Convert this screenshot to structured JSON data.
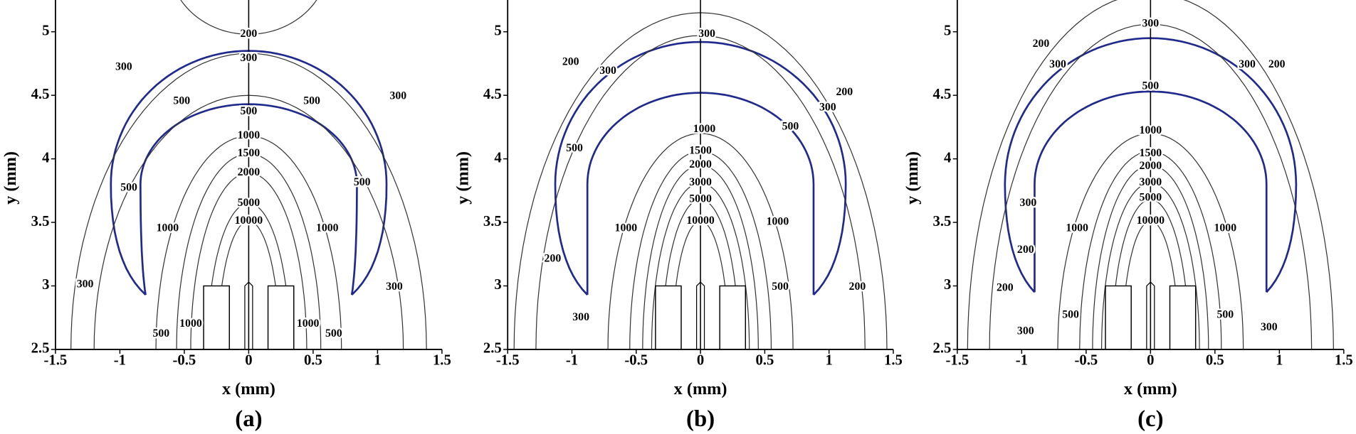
{
  "chart_data": [
    {
      "type": "contour",
      "title": "(a)",
      "x_label": "x (mm)",
      "y_label": "y (mm)",
      "xlim": [
        -1.5,
        1.5
      ],
      "ylim": [
        2.5,
        5.25
      ],
      "xticks": [
        -1.5,
        -1,
        -0.5,
        0,
        0.5,
        1,
        1.5
      ],
      "yticks": [
        2.5,
        3,
        3.5,
        4,
        4.5,
        5
      ],
      "color": "#333333",
      "highlight_color": "#1f2a8c",
      "contour_labels": [
        200,
        300,
        300,
        300,
        500,
        500,
        500,
        1000,
        1500,
        2000,
        5000,
        10000,
        500,
        500,
        1000,
        1000,
        300,
        300,
        500,
        1000,
        1000,
        500
      ]
    },
    {
      "type": "contour",
      "title": "(b)",
      "x_label": "x (mm)",
      "y_label": "y (mm)",
      "xlim": [
        -1.5,
        1.5
      ],
      "ylim": [
        2.5,
        5.25
      ],
      "xticks": [
        -1.5,
        -1,
        -0.5,
        0,
        0.5,
        1,
        1.5
      ],
      "yticks": [
        2.5,
        3,
        3.5,
        4,
        4.5,
        5
      ],
      "color": "#333333",
      "highlight_color": "#1f2a8c",
      "contour_labels": [
        300,
        200,
        300,
        200,
        300,
        500,
        1000,
        1500,
        2000,
        3000,
        5000,
        10000,
        500,
        1000,
        1000,
        200,
        300,
        500,
        200
      ]
    },
    {
      "type": "contour",
      "title": "(c)",
      "x_label": "x (mm)",
      "y_label": "y (mm)",
      "xlim": [
        -1.5,
        1.5
      ],
      "ylim": [
        2.5,
        5.25
      ],
      "xticks": [
        -1.5,
        -1,
        -0.5,
        0,
        0.5,
        1,
        1.5
      ],
      "yticks": [
        2.5,
        3,
        3.5,
        4,
        4.5,
        5
      ],
      "color": "#333333",
      "highlight_color": "#1f2a8c",
      "contour_labels": [
        300,
        200,
        300,
        300,
        200,
        500,
        1000,
        1500,
        2000,
        3000,
        5000,
        10000,
        300,
        1000,
        1000,
        200,
        200,
        300,
        500,
        500,
        300
      ]
    }
  ]
}
